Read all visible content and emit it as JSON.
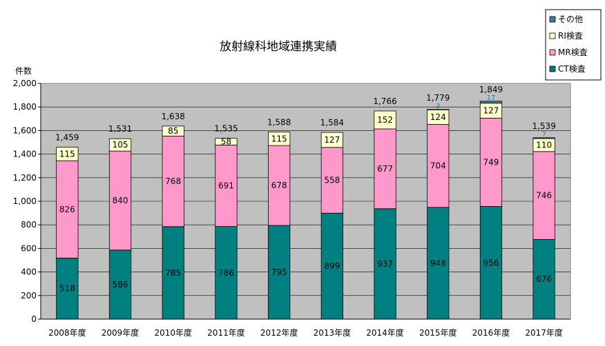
{
  "chart_data": {
    "type": "bar",
    "stacked": true,
    "title": "放射線科地域連携実績",
    "ylabel": "件数",
    "ylim": [
      0,
      2000
    ],
    "yticks": [
      0,
      200,
      400,
      600,
      800,
      1000,
      1200,
      1400,
      1600,
      1800,
      2000
    ],
    "ytick_labels": [
      "0",
      "200",
      "400",
      "600",
      "800",
      "1,000",
      "1,200",
      "1,400",
      "1,600",
      "1,800",
      "2,000"
    ],
    "grid": true,
    "legend_position": "top-right",
    "categories": [
      "2008年度",
      "2009年度",
      "2010年度",
      "2011年度",
      "2012年度",
      "2013年度",
      "2014年度",
      "2015年度",
      "2016年度",
      "2017年度"
    ],
    "series": [
      {
        "name": "CT検査",
        "color": "#008080",
        "values": [
          518,
          586,
          785,
          786,
          795,
          899,
          937,
          948,
          956,
          676
        ],
        "labels": [
          "518",
          "586",
          "785",
          "786",
          "795",
          "899",
          "937",
          "948",
          "956",
          "676"
        ]
      },
      {
        "name": "MR検査",
        "color": "#FF99CC",
        "values": [
          826,
          840,
          768,
          691,
          678,
          558,
          677,
          704,
          749,
          746
        ],
        "labels": [
          "826",
          "840",
          "768",
          "691",
          "678",
          "558",
          "677",
          "704",
          "749",
          "746"
        ]
      },
      {
        "name": "RI検査",
        "color": "#FFFFCC",
        "values": [
          115,
          105,
          85,
          58,
          115,
          127,
          152,
          124,
          127,
          110
        ],
        "labels": [
          "115",
          "105",
          "85",
          "58",
          "115",
          "127",
          "152",
          "124",
          "127",
          "110"
        ]
      },
      {
        "name": "その他",
        "color": "#31859C",
        "values": [
          0,
          0,
          0,
          0,
          0,
          0,
          0,
          3,
          17,
          7
        ],
        "labels": [
          "",
          "",
          "",
          "",
          "",
          "",
          "",
          "3",
          "17",
          "7"
        ]
      }
    ],
    "totals": [
      "1,459",
      "1,531",
      "1,638",
      "1,535",
      "1,588",
      "1,584",
      "1,766",
      "1,779",
      "1,849",
      "1,539"
    ]
  }
}
